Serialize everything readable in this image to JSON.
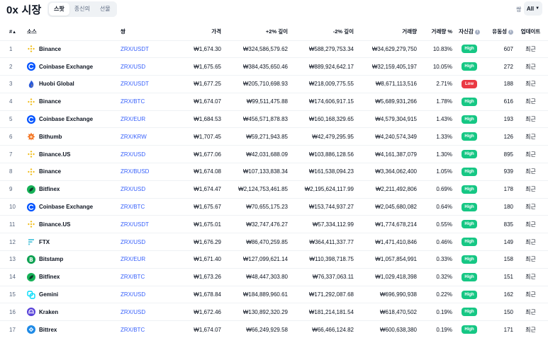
{
  "header": {
    "title": "0x 시장",
    "tabs": [
      "스팟",
      "종신의",
      "선물"
    ],
    "active_tab": 0,
    "filter_label": "쌍",
    "filter_value": "All"
  },
  "columns": {
    "rank": "#",
    "rank_sort": "▲",
    "source": "소스",
    "pair": "쌍",
    "price": "가격",
    "depth_plus": "+2% 깊이",
    "depth_minus": "-2% 깊이",
    "volume": "거래량",
    "volume_pct": "거래량 %",
    "confidence": "자신감",
    "liquidity": "유동성",
    "updated": "업데이트"
  },
  "colors": {
    "high": "#16c784",
    "low": "#ea3943",
    "link": "#3861fb"
  },
  "rows": [
    {
      "rank": "1",
      "exchange": "Binance",
      "icon": "binance-icon",
      "pair": "ZRX/USDT",
      "price": "₩1,674.30",
      "depth_plus": "₩324,586,579.62",
      "depth_minus": "₩588,279,753.34",
      "volume": "₩34,629,279,750",
      "volume_pct": "10.83%",
      "confidence": "High",
      "liquidity": "607",
      "updated": "최근"
    },
    {
      "rank": "2",
      "exchange": "Coinbase Exchange",
      "icon": "coinbase-icon",
      "pair": "ZRX/USD",
      "price": "₩1,675.65",
      "depth_plus": "₩384,435,650.46",
      "depth_minus": "₩889,924,642.17",
      "volume": "₩32,159,405,197",
      "volume_pct": "10.05%",
      "confidence": "High",
      "liquidity": "272",
      "updated": "최근"
    },
    {
      "rank": "3",
      "exchange": "Huobi Global",
      "icon": "huobi-icon",
      "pair": "ZRX/USDT",
      "price": "₩1,677.25",
      "depth_plus": "₩205,710,698.93",
      "depth_minus": "₩218,009,775.55",
      "volume": "₩8,671,113,516",
      "volume_pct": "2.71%",
      "confidence": "Low",
      "liquidity": "188",
      "updated": "최근"
    },
    {
      "rank": "4",
      "exchange": "Binance",
      "icon": "binance-icon",
      "pair": "ZRX/BTC",
      "price": "₩1,674.07",
      "depth_plus": "₩99,511,475.88",
      "depth_minus": "₩174,606,917.15",
      "volume": "₩5,689,931,266",
      "volume_pct": "1.78%",
      "confidence": "High",
      "liquidity": "616",
      "updated": "최근"
    },
    {
      "rank": "5",
      "exchange": "Coinbase Exchange",
      "icon": "coinbase-icon",
      "pair": "ZRX/EUR",
      "price": "₩1,684.53",
      "depth_plus": "₩456,571,878.83",
      "depth_minus": "₩160,168,329.65",
      "volume": "₩4,579,304,915",
      "volume_pct": "1.43%",
      "confidence": "High",
      "liquidity": "193",
      "updated": "최근"
    },
    {
      "rank": "6",
      "exchange": "Bithumb",
      "icon": "bithumb-icon",
      "pair": "ZRX/KRW",
      "price": "₩1,707.45",
      "depth_plus": "₩59,271,943.85",
      "depth_minus": "₩42,479,295.95",
      "volume": "₩4,240,574,349",
      "volume_pct": "1.33%",
      "confidence": "High",
      "liquidity": "126",
      "updated": "최근"
    },
    {
      "rank": "7",
      "exchange": "Binance.US",
      "icon": "binance-icon",
      "pair": "ZRX/USD",
      "price": "₩1,677.06",
      "depth_plus": "₩42,031,688.09",
      "depth_minus": "₩103,886,128.56",
      "volume": "₩4,161,387,079",
      "volume_pct": "1.30%",
      "confidence": "High",
      "liquidity": "895",
      "updated": "최근"
    },
    {
      "rank": "8",
      "exchange": "Binance",
      "icon": "binance-icon",
      "pair": "ZRX/BUSD",
      "price": "₩1,674.08",
      "depth_plus": "₩107,133,838.34",
      "depth_minus": "₩161,538,094.23",
      "volume": "₩3,364,062,400",
      "volume_pct": "1.05%",
      "confidence": "High",
      "liquidity": "939",
      "updated": "최근"
    },
    {
      "rank": "9",
      "exchange": "Bitfinex",
      "icon": "bitfinex-icon",
      "pair": "ZRX/USD",
      "price": "₩1,674.47",
      "depth_plus": "₩2,124,753,461.85",
      "depth_minus": "₩2,195,624,117.99",
      "volume": "₩2,211,492,806",
      "volume_pct": "0.69%",
      "confidence": "High",
      "liquidity": "178",
      "updated": "최근"
    },
    {
      "rank": "10",
      "exchange": "Coinbase Exchange",
      "icon": "coinbase-icon",
      "pair": "ZRX/BTC",
      "price": "₩1,675.67",
      "depth_plus": "₩70,655,175.23",
      "depth_minus": "₩153,744,937.27",
      "volume": "₩2,045,680,082",
      "volume_pct": "0.64%",
      "confidence": "High",
      "liquidity": "180",
      "updated": "최근"
    },
    {
      "rank": "11",
      "exchange": "Binance.US",
      "icon": "binance-icon",
      "pair": "ZRX/USDT",
      "price": "₩1,675.01",
      "depth_plus": "₩32,747,476.27",
      "depth_minus": "₩57,334,112.99",
      "volume": "₩1,774,678,214",
      "volume_pct": "0.55%",
      "confidence": "High",
      "liquidity": "835",
      "updated": "최근"
    },
    {
      "rank": "12",
      "exchange": "FTX",
      "icon": "ftx-icon",
      "pair": "ZRX/USD",
      "price": "₩1,676.29",
      "depth_plus": "₩86,470,259.85",
      "depth_minus": "₩364,411,337.77",
      "volume": "₩1,471,410,846",
      "volume_pct": "0.46%",
      "confidence": "High",
      "liquidity": "149",
      "updated": "최근"
    },
    {
      "rank": "13",
      "exchange": "Bitstamp",
      "icon": "bitstamp-icon",
      "pair": "ZRX/EUR",
      "price": "₩1,671.40",
      "depth_plus": "₩127,099,621.14",
      "depth_minus": "₩110,398,718.75",
      "volume": "₩1,057,854,991",
      "volume_pct": "0.33%",
      "confidence": "High",
      "liquidity": "158",
      "updated": "최근"
    },
    {
      "rank": "14",
      "exchange": "Bitfinex",
      "icon": "bitfinex-icon",
      "pair": "ZRX/BTC",
      "price": "₩1,673.26",
      "depth_plus": "₩48,447,303.80",
      "depth_minus": "₩76,337,063.11",
      "volume": "₩1,029,418,398",
      "volume_pct": "0.32%",
      "confidence": "High",
      "liquidity": "151",
      "updated": "최근"
    },
    {
      "rank": "15",
      "exchange": "Gemini",
      "icon": "gemini-icon",
      "pair": "ZRX/USD",
      "price": "₩1,678.84",
      "depth_plus": "₩184,889,960.61",
      "depth_minus": "₩171,292,087.68",
      "volume": "₩696,990,938",
      "volume_pct": "0.22%",
      "confidence": "High",
      "liquidity": "162",
      "updated": "최근"
    },
    {
      "rank": "16",
      "exchange": "Kraken",
      "icon": "kraken-icon",
      "pair": "ZRX/USD",
      "price": "₩1,672.46",
      "depth_plus": "₩130,892,320.29",
      "depth_minus": "₩181,214,181.54",
      "volume": "₩618,470,502",
      "volume_pct": "0.19%",
      "confidence": "High",
      "liquidity": "150",
      "updated": "최근"
    },
    {
      "rank": "17",
      "exchange": "Bittrex",
      "icon": "bittrex-icon",
      "pair": "ZRX/BTC",
      "price": "₩1,674.07",
      "depth_plus": "₩66,249,929.58",
      "depth_minus": "₩66,466,124.82",
      "volume": "₩600,638,380",
      "volume_pct": "0.19%",
      "confidence": "High",
      "liquidity": "171",
      "updated": "최근"
    }
  ]
}
